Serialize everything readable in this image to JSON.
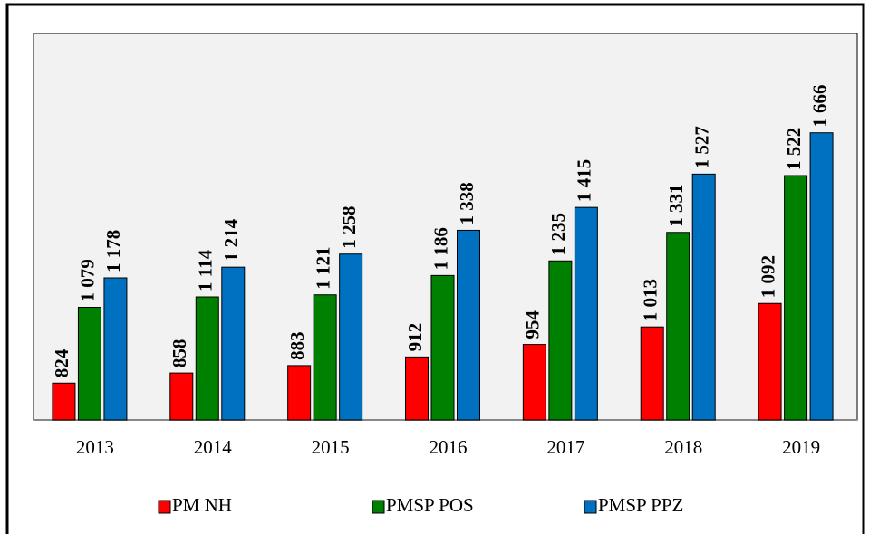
{
  "chart_data": {
    "type": "bar",
    "categories": [
      "2013",
      "2014",
      "2015",
      "2016",
      "2017",
      "2018",
      "2019"
    ],
    "series": [
      {
        "name": "PM NH",
        "color": "#ff0000",
        "values": [
          824,
          858,
          883,
          912,
          954,
          1013,
          1092
        ],
        "value_labels": [
          "824",
          "858",
          "883",
          "912",
          "954",
          "1 013",
          "1 092"
        ]
      },
      {
        "name": "PMSP POS",
        "color": "#008000",
        "values": [
          1079,
          1114,
          1121,
          1186,
          1235,
          1331,
          1522
        ],
        "value_labels": [
          "1 079",
          "1 114",
          "1 121",
          "1 186",
          "1 235",
          "1 331",
          "1 522"
        ]
      },
      {
        "name": "PMSP PPZ",
        "color": "#0070c0",
        "values": [
          1178,
          1214,
          1258,
          1338,
          1415,
          1527,
          1666
        ],
        "value_labels": [
          "1 178",
          "1 214",
          "1 258",
          "1 338",
          "1 415",
          "1 527",
          "1 666"
        ]
      }
    ],
    "ylim": [
      700,
      2000
    ],
    "legend": "bottom"
  }
}
